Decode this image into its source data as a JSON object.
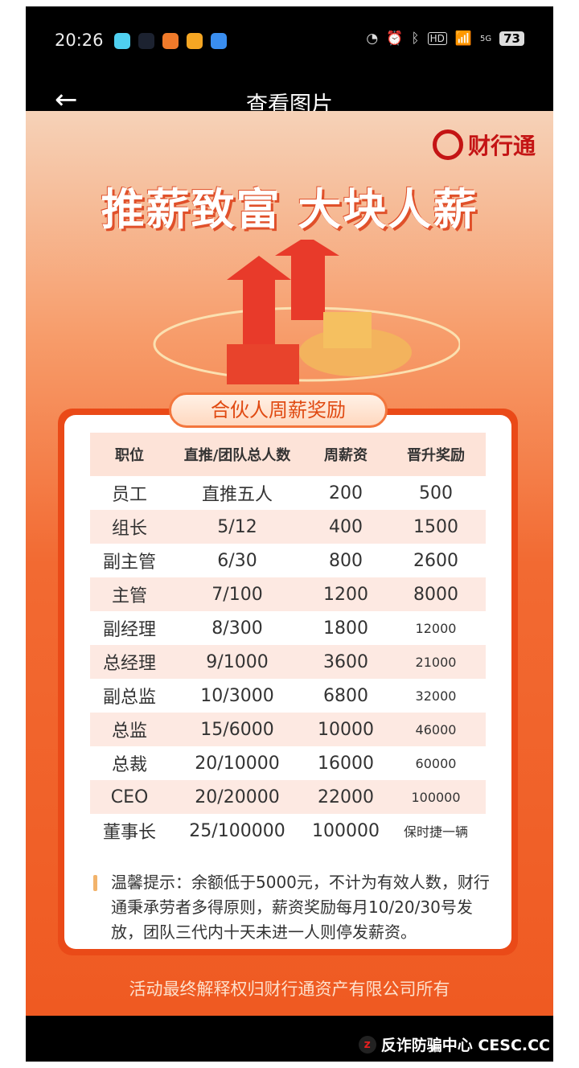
{
  "status_bar": {
    "time": "20:26",
    "battery": "73",
    "network": "5G",
    "hd": "HD"
  },
  "topbar": {
    "back_icon": "arrow-left-icon",
    "title": "查看图片"
  },
  "poster": {
    "brand": "财行通",
    "slogan": "推薪致富 大块人薪",
    "section_title": "合伙人周薪奖励",
    "table": {
      "headers": [
        "职位",
        "直推/团队总人数",
        "周薪资",
        "晋升奖励"
      ],
      "rows": [
        [
          "员工",
          "直推五人",
          "200",
          "500"
        ],
        [
          "组长",
          "5/12",
          "400",
          "1500"
        ],
        [
          "副主管",
          "6/30",
          "800",
          "2600"
        ],
        [
          "主管",
          "7/100",
          "1200",
          "8000"
        ],
        [
          "副经理",
          "8/300",
          "1800",
          "12000"
        ],
        [
          "总经理",
          "9/1000",
          "3600",
          "21000"
        ],
        [
          "副总监",
          "10/3000",
          "6800",
          "32000"
        ],
        [
          "总监",
          "15/6000",
          "10000",
          "46000"
        ],
        [
          "总裁",
          "20/10000",
          "16000",
          "60000"
        ],
        [
          "CEO",
          "20/20000",
          "22000",
          "100000"
        ],
        [
          "董事长",
          "25/100000",
          "100000",
          "保时捷一辆"
        ]
      ]
    },
    "notice": "温馨提示：余额低于5000元，不计为有效人数，财行通秉承劳者多得原则，薪资奖励每月10/20/30号发放，团队三代内十天未进一人则停发薪资。",
    "footer": "活动最终解释权归财行通资产有限公司所有"
  },
  "watermark": "反诈防骗中心 CESC.CC",
  "colors": {
    "accent": "#ea4a18",
    "brand": "#c41414"
  }
}
